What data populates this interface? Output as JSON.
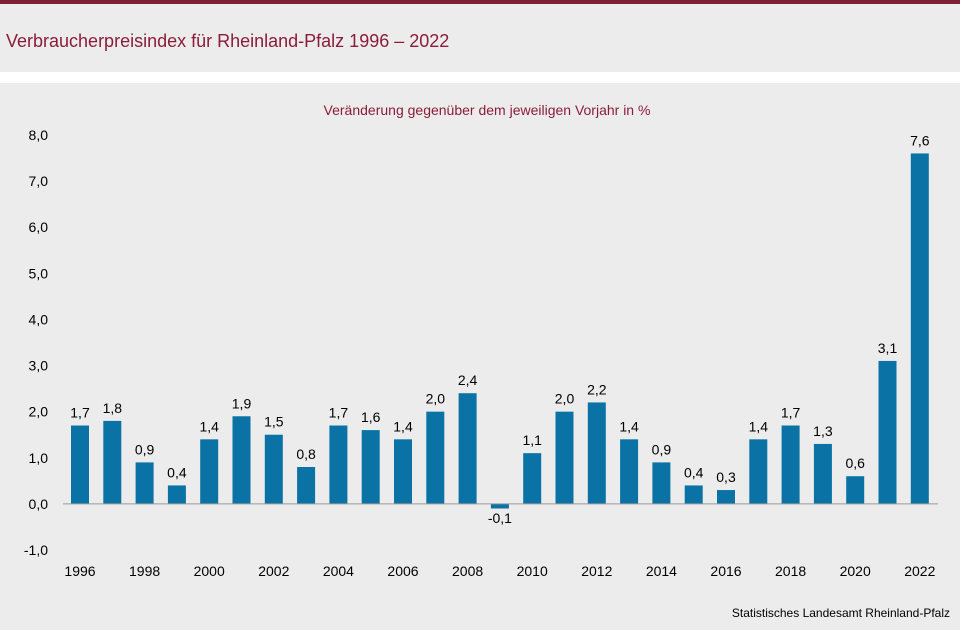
{
  "header": {
    "title": "Verbraucherpreisindex für Rheinland-Pfalz 1996 – 2022"
  },
  "source": "Statistisches Landesamt Rheinland-Pfalz",
  "colors": {
    "bar": "#0a72a5",
    "accent": "#7d1f35",
    "title": "#8b1d3a"
  },
  "chart_data": {
    "type": "bar",
    "title": "Veränderung gegenüber dem jeweiligen Vorjahr in %",
    "categories": [
      "1996",
      "1997",
      "1998",
      "1999",
      "2000",
      "2001",
      "2002",
      "2003",
      "2004",
      "2005",
      "2006",
      "2007",
      "2008",
      "2009",
      "2010",
      "2011",
      "2012",
      "2013",
      "2014",
      "2015",
      "2016",
      "2017",
      "2018",
      "2019",
      "2020",
      "2021",
      "2022"
    ],
    "values": [
      1.7,
      1.8,
      0.9,
      0.4,
      1.4,
      1.9,
      1.5,
      0.8,
      1.7,
      1.6,
      1.4,
      2.0,
      2.4,
      -0.1,
      1.1,
      2.0,
      2.2,
      1.4,
      0.9,
      0.4,
      0.3,
      1.4,
      1.7,
      1.3,
      0.6,
      3.1,
      7.6
    ],
    "value_labels": [
      "1,7",
      "1,8",
      "0,9",
      "0,4",
      "1,4",
      "1,9",
      "1,5",
      "0,8",
      "1,7",
      "1,6",
      "1,4",
      "2,0",
      "2,4",
      "-0,1",
      "1,1",
      "2,0",
      "2,2",
      "1,4",
      "0,9",
      "0,4",
      "0,3",
      "1,4",
      "1,7",
      "1,3",
      "0,6",
      "3,1",
      "7,6"
    ],
    "x_tick_labels": [
      "1996",
      "1998",
      "2000",
      "2002",
      "2004",
      "2006",
      "2008",
      "2010",
      "2012",
      "2014",
      "2016",
      "2018",
      "2020",
      "2022"
    ],
    "y_tick_values": [
      8,
      7,
      6,
      5,
      4,
      3,
      2,
      1,
      0,
      -1
    ],
    "y_tick_labels": [
      "8,0",
      "7,0",
      "6,0",
      "5,0",
      "4,0",
      "3,0",
      "2,0",
      "1,0",
      "0,0",
      "-1,0"
    ],
    "ylim": [
      -1,
      8
    ],
    "grid": false,
    "legend": "none"
  }
}
